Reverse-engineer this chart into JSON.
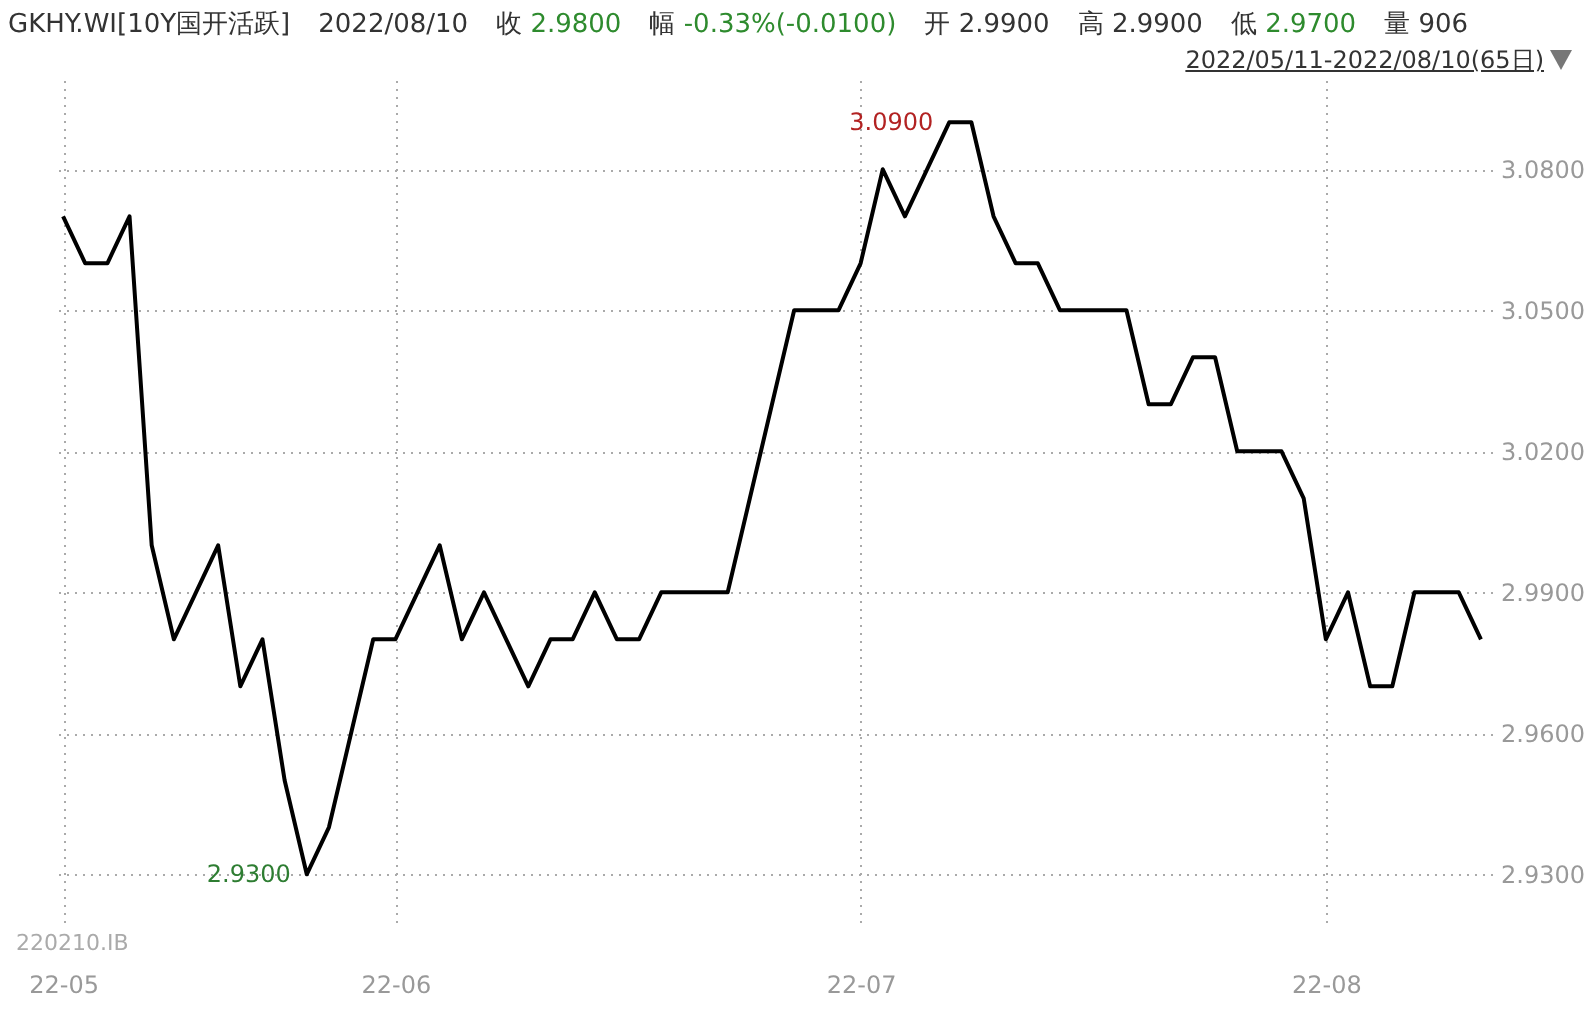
{
  "chart_data": {
    "type": "line",
    "title": "GKHY.WI[10Y国开活跃]",
    "annotations": [
      "2022/08/10",
      "收 2.9800",
      "幅 -0.33%(-0.0100)",
      "开 2.9900",
      "高 2.9900",
      "低 2.9700",
      "量 906",
      "2022/05/11-2022/08/10(65日)",
      "220210.IB",
      "3.0900",
      "2.9300"
    ],
    "categories": [
      "22-05",
      null,
      null,
      null,
      null,
      null,
      null,
      null,
      null,
      null,
      null,
      null,
      null,
      null,
      null,
      "22-06",
      null,
      null,
      null,
      null,
      null,
      null,
      null,
      null,
      null,
      null,
      null,
      null,
      null,
      null,
      null,
      null,
      null,
      null,
      null,
      null,
      "22-07",
      null,
      null,
      null,
      null,
      null,
      null,
      null,
      null,
      null,
      null,
      null,
      null,
      null,
      null,
      null,
      null,
      null,
      null,
      null,
      null,
      "22-08",
      null,
      null,
      null,
      null,
      null,
      null,
      null
    ],
    "values": [
      3.07,
      3.06,
      3.06,
      3.07,
      3.0,
      2.98,
      2.99,
      3.0,
      2.97,
      2.98,
      2.95,
      2.93,
      2.94,
      2.96,
      2.98,
      2.98,
      2.99,
      3.0,
      2.98,
      2.99,
      2.98,
      2.97,
      2.98,
      2.98,
      2.99,
      2.98,
      2.98,
      2.99,
      2.99,
      2.99,
      2.99,
      3.01,
      3.03,
      3.05,
      3.05,
      3.05,
      3.06,
      3.08,
      3.07,
      3.08,
      3.09,
      3.09,
      3.07,
      3.06,
      3.06,
      3.05,
      3.05,
      3.05,
      3.05,
      3.03,
      3.03,
      3.04,
      3.04,
      3.02,
      3.02,
      3.02,
      3.01,
      2.98,
      2.99,
      2.97,
      2.97,
      2.99,
      2.99,
      2.99,
      2.98
    ],
    "color": "#000000",
    "ylim": [
      2.919,
      3.099
    ],
    "yticks": [
      {
        "value": 2.93,
        "label": "2.9300"
      },
      {
        "value": 2.96,
        "label": "2.9600"
      },
      {
        "value": 2.99,
        "label": "2.9900"
      },
      {
        "value": 3.02,
        "label": "3.0200"
      },
      {
        "value": 3.05,
        "label": "3.0500"
      },
      {
        "value": 3.08,
        "label": "3.0800"
      }
    ],
    "grid": true
  }
}
